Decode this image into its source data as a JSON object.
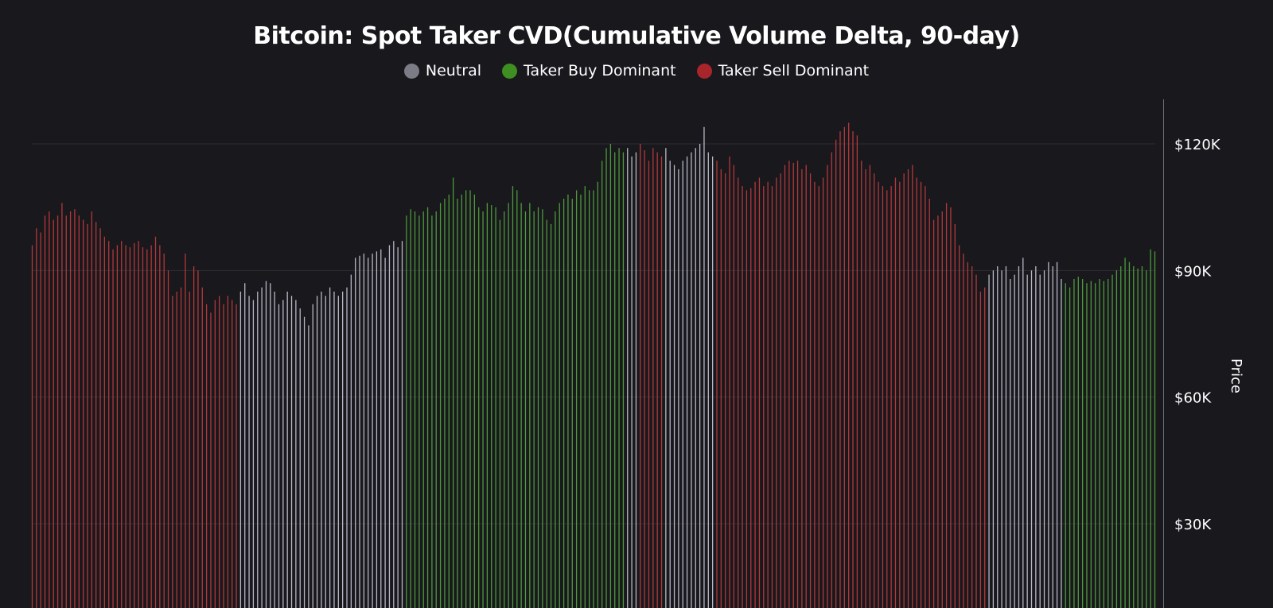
{
  "chart_data": {
    "type": "bar",
    "title": "Bitcoin: Spot Taker CVD(Cumulative Volume Delta, 90-day)",
    "legend": [
      {
        "key": "neutral",
        "label": "Neutral",
        "color": "#7c7c86"
      },
      {
        "key": "buy",
        "label": "Taker Buy Dominant",
        "color": "#3e8e22"
      },
      {
        "key": "sell",
        "label": "Taker Sell Dominant",
        "color": "#a8262b"
      }
    ],
    "legend_position": "top-center",
    "y_axis": {
      "label": "Price",
      "position": "right",
      "ticks": [
        30000,
        60000,
        90000,
        120000
      ],
      "tick_labels": [
        "$30K",
        "$60K",
        "$90K",
        "$120K"
      ],
      "range": [
        10000,
        133000
      ]
    },
    "grid": true,
    "bar_colors": {
      "neutral": "#b8b8c6",
      "buy": "#4f9a3b",
      "sell": "#b3393b"
    },
    "segments": [
      {
        "regime": "sell",
        "values": [
          96000,
          100000,
          99000,
          103000,
          104000,
          102000,
          103000,
          106000,
          103000,
          104000,
          104500,
          103000,
          102000,
          101000,
          104000,
          101500,
          100000,
          98000,
          97000,
          95000,
          96000,
          97000,
          96000,
          95500,
          96500,
          97000,
          95500,
          95000,
          96000,
          98000,
          96000,
          94000,
          90000,
          84000,
          85000,
          86000,
          94000,
          85000,
          91000,
          90000,
          86000,
          82000,
          80000,
          83000,
          84000,
          82000,
          84000,
          83000,
          82000
        ]
      },
      {
        "regime": "neutral",
        "values": [
          85000,
          87000,
          84000,
          83000,
          85000,
          86000,
          87500,
          87000,
          85000,
          82000,
          83000,
          85000,
          84000,
          83000,
          81000,
          79000,
          77000,
          82000,
          84000,
          85000,
          84000,
          86000,
          85000,
          84000,
          85000,
          86000,
          89000,
          93000,
          93500,
          94000,
          93000,
          94000,
          94500,
          95000,
          93000,
          96000,
          97000,
          95500,
          97000
        ]
      },
      {
        "regime": "buy",
        "values": [
          103000,
          104500,
          104000,
          103000,
          104000,
          105000,
          103000,
          104000,
          106000,
          107000,
          108000,
          112000,
          107000,
          108000,
          109000,
          109000,
          108000,
          105000,
          104000,
          106000,
          105500,
          105000,
          102000,
          104000,
          106000,
          110000,
          109000,
          106000,
          104000,
          106000,
          104000,
          105000,
          104500,
          102000,
          101000,
          104000,
          106000,
          107000,
          108000,
          107000,
          109000,
          108000,
          110000,
          109000,
          109000,
          111000,
          116000,
          119000,
          120000,
          118000,
          119000,
          118000
        ]
      },
      {
        "regime": "neutral",
        "values": [
          119000,
          117000,
          118000
        ]
      },
      {
        "regime": "sell",
        "values": [
          120000,
          118500,
          116000,
          119000,
          118000,
          117000
        ]
      },
      {
        "regime": "neutral",
        "values": [
          119000,
          116000,
          115000,
          114000,
          116000,
          117000,
          118000,
          119000,
          120000,
          124000,
          118000,
          117000
        ]
      },
      {
        "regime": "sell",
        "values": [
          116000,
          114000,
          113000,
          117000,
          115000,
          112000,
          110000,
          109000,
          109500,
          111000,
          112000,
          110000,
          111000,
          110000,
          112000,
          113000,
          115000,
          116000,
          115500,
          116000,
          114000,
          115000,
          113000,
          111000,
          110000,
          112000,
          115000,
          118000,
          121000,
          123000,
          124000,
          125000,
          123000,
          122000,
          116000,
          114000,
          115000,
          113000,
          111000,
          110000,
          109000,
          110000,
          112000,
          111000,
          113000,
          114000,
          115000,
          112000,
          111000,
          110000,
          107000,
          102000,
          103000,
          104000,
          106000,
          105000,
          101000,
          96000,
          94000,
          92000,
          91000,
          89000,
          85000,
          86000
        ]
      },
      {
        "regime": "neutral",
        "values": [
          89000,
          90000,
          91000,
          90000,
          91000,
          88000,
          89000,
          91000,
          93000,
          89000,
          90000,
          91000,
          89000,
          90000,
          92000,
          91000,
          92000,
          88000
        ]
      },
      {
        "regime": "buy",
        "values": [
          87000,
          86000,
          88000,
          88500,
          88000,
          87000,
          87500,
          87000,
          88000,
          87500,
          88000,
          89000,
          90000,
          91000,
          93000,
          92000,
          91000,
          90500,
          91000,
          90000,
          95000,
          94500
        ]
      }
    ]
  }
}
